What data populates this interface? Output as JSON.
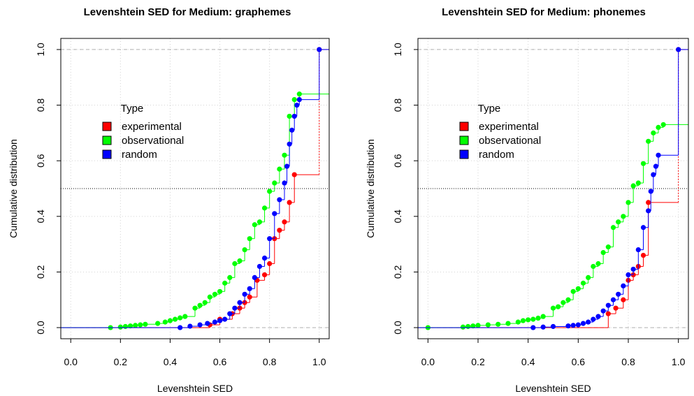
{
  "chart_data": [
    {
      "type": "line",
      "subtype": "ecdf-step",
      "title": "Levenshtein SED for Medium: graphemes",
      "xlabel": "Levenshtein SED",
      "ylabel": "Cumulative distribution",
      "xlim": [
        -0.04,
        1.04
      ],
      "ylim": [
        -0.04,
        1.04
      ],
      "xticks": [
        "0.0",
        "0.2",
        "0.4",
        "0.6",
        "0.8",
        "1.0"
      ],
      "yticks": [
        "0.0",
        "0.2",
        "0.4",
        "0.6",
        "0.8",
        "1.0"
      ],
      "grid": true,
      "legend": {
        "title": "Type",
        "position": "upper-left"
      },
      "reference_line_y": 0.5,
      "series": [
        {
          "name": "experimental",
          "color": "#ff0000",
          "x": [
            0.56,
            0.6,
            0.65,
            0.68,
            0.7,
            0.72,
            0.75,
            0.78,
            0.8,
            0.82,
            0.84,
            0.86,
            0.88,
            0.9,
            1.0
          ],
          "y": [
            0.01,
            0.03,
            0.05,
            0.07,
            0.09,
            0.11,
            0.17,
            0.19,
            0.23,
            0.32,
            0.35,
            0.38,
            0.45,
            0.55,
            1.0
          ]
        },
        {
          "name": "observational",
          "color": "#00ff00",
          "x": [
            0.16,
            0.2,
            0.22,
            0.24,
            0.26,
            0.28,
            0.3,
            0.35,
            0.38,
            0.4,
            0.42,
            0.44,
            0.46,
            0.5,
            0.52,
            0.54,
            0.56,
            0.58,
            0.6,
            0.62,
            0.64,
            0.66,
            0.68,
            0.7,
            0.72,
            0.74,
            0.76,
            0.78,
            0.8,
            0.82,
            0.84,
            0.86,
            0.88,
            0.9,
            0.92
          ],
          "y": [
            0.0,
            0.002,
            0.004,
            0.006,
            0.008,
            0.01,
            0.012,
            0.015,
            0.02,
            0.025,
            0.03,
            0.035,
            0.04,
            0.07,
            0.08,
            0.09,
            0.11,
            0.12,
            0.13,
            0.16,
            0.18,
            0.23,
            0.24,
            0.28,
            0.32,
            0.37,
            0.38,
            0.43,
            0.49,
            0.52,
            0.57,
            0.62,
            0.76,
            0.82,
            0.84
          ]
        },
        {
          "name": "random",
          "color": "#0000ff",
          "x": [
            0.44,
            0.48,
            0.52,
            0.55,
            0.58,
            0.6,
            0.62,
            0.64,
            0.66,
            0.68,
            0.7,
            0.72,
            0.74,
            0.76,
            0.78,
            0.8,
            0.82,
            0.84,
            0.86,
            0.87,
            0.88,
            0.89,
            0.9,
            0.91,
            0.92,
            1.0
          ],
          "y": [
            0.0,
            0.005,
            0.01,
            0.015,
            0.02,
            0.025,
            0.03,
            0.05,
            0.07,
            0.09,
            0.12,
            0.14,
            0.18,
            0.22,
            0.25,
            0.32,
            0.41,
            0.46,
            0.52,
            0.58,
            0.66,
            0.71,
            0.76,
            0.8,
            0.82,
            1.0
          ]
        }
      ]
    },
    {
      "type": "line",
      "subtype": "ecdf-step",
      "title": "Levenshtein SED for Medium: phonemes",
      "xlabel": "Levenshtein SED",
      "ylabel": "Cumulative distribution",
      "xlim": [
        -0.04,
        1.04
      ],
      "ylim": [
        -0.04,
        1.04
      ],
      "xticks": [
        "0.0",
        "0.2",
        "0.4",
        "0.6",
        "0.8",
        "1.0"
      ],
      "yticks": [
        "0.0",
        "0.2",
        "0.4",
        "0.6",
        "0.8",
        "1.0"
      ],
      "grid": true,
      "legend": {
        "title": "Type",
        "position": "upper-left"
      },
      "reference_line_y": 0.5,
      "series": [
        {
          "name": "experimental",
          "color": "#ff0000",
          "x": [
            0.72,
            0.75,
            0.78,
            0.8,
            0.82,
            0.84,
            0.86,
            0.88,
            1.0
          ],
          "y": [
            0.05,
            0.07,
            0.1,
            0.17,
            0.19,
            0.22,
            0.26,
            0.45,
            1.0
          ]
        },
        {
          "name": "observational",
          "color": "#00ff00",
          "x": [
            0.0,
            0.14,
            0.16,
            0.18,
            0.2,
            0.24,
            0.28,
            0.32,
            0.36,
            0.38,
            0.4,
            0.42,
            0.44,
            0.46,
            0.5,
            0.52,
            0.54,
            0.56,
            0.58,
            0.6,
            0.62,
            0.64,
            0.66,
            0.68,
            0.7,
            0.72,
            0.74,
            0.76,
            0.78,
            0.8,
            0.82,
            0.84,
            0.86,
            0.88,
            0.9,
            0.92,
            0.94
          ],
          "y": [
            0.0,
            0.002,
            0.004,
            0.006,
            0.008,
            0.01,
            0.012,
            0.015,
            0.02,
            0.025,
            0.028,
            0.03,
            0.034,
            0.04,
            0.07,
            0.075,
            0.09,
            0.1,
            0.13,
            0.14,
            0.16,
            0.18,
            0.22,
            0.23,
            0.27,
            0.29,
            0.36,
            0.38,
            0.4,
            0.45,
            0.51,
            0.52,
            0.59,
            0.67,
            0.7,
            0.72,
            0.73
          ]
        },
        {
          "name": "random",
          "color": "#0000ff",
          "x": [
            0.42,
            0.46,
            0.5,
            0.56,
            0.58,
            0.6,
            0.62,
            0.64,
            0.66,
            0.68,
            0.7,
            0.72,
            0.74,
            0.76,
            0.78,
            0.8,
            0.82,
            0.84,
            0.86,
            0.88,
            0.89,
            0.9,
            0.91,
            0.92,
            1.0
          ],
          "y": [
            0.0,
            0.002,
            0.004,
            0.006,
            0.008,
            0.01,
            0.015,
            0.02,
            0.03,
            0.04,
            0.06,
            0.08,
            0.1,
            0.12,
            0.15,
            0.19,
            0.21,
            0.28,
            0.36,
            0.42,
            0.49,
            0.55,
            0.58,
            0.62,
            1.0
          ]
        }
      ]
    }
  ]
}
